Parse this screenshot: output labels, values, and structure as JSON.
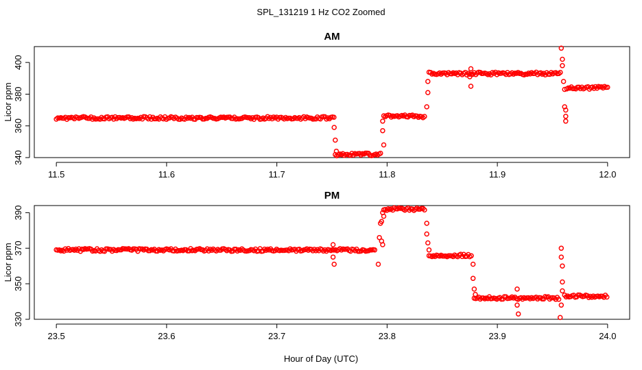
{
  "page_title": "SPL_131219  1 Hz CO2 Zoomed",
  "x_axis_label": "Hour of Day (UTC)",
  "colors": {
    "points": "#ff0000",
    "axes": "#000000",
    "background": "#ffffff"
  },
  "chart_data": [
    {
      "type": "scatter",
      "title": "AM",
      "xlabel": "",
      "ylabel": "Licor ppm",
      "xlim": [
        11.5,
        12.0
      ],
      "ylim": [
        340,
        410
      ],
      "xticks": [
        "11.5",
        "11.6",
        "11.7",
        "11.8",
        "11.9",
        "12.0"
      ],
      "yticks": [
        "340",
        "360",
        "380",
        "400"
      ],
      "grid": false,
      "series": [
        {
          "marker": "open-circle",
          "segments": [
            {
              "x_start": 11.5,
              "x_end": 11.752,
              "y": 365
            },
            {
              "x_start": 11.753,
              "x_end": 11.795,
              "y": 342
            },
            {
              "x_start": 11.797,
              "x_end": 11.835,
              "y": 366
            },
            {
              "x_start": 11.838,
              "x_end": 11.958,
              "y": 393
            },
            {
              "x_start": 11.963,
              "x_end": 12.0,
              "y": 384
            }
          ],
          "points": [
            [
              11.752,
              359
            ],
            [
              11.753,
              351
            ],
            [
              11.754,
              344
            ],
            [
              11.796,
              357
            ],
            [
              11.796,
              363
            ],
            [
              11.797,
              348
            ],
            [
              11.836,
              372
            ],
            [
              11.837,
              381
            ],
            [
              11.837,
              388
            ],
            [
              11.876,
              396
            ],
            [
              11.876,
              385
            ],
            [
              11.875,
              391
            ],
            [
              11.958,
              409
            ],
            [
              11.959,
              402
            ],
            [
              11.959,
              398
            ],
            [
              11.96,
              388
            ],
            [
              11.961,
              383
            ],
            [
              11.961,
              372
            ],
            [
              11.962,
              370
            ],
            [
              11.962,
              366
            ],
            [
              11.962,
              363
            ]
          ]
        }
      ]
    },
    {
      "type": "scatter",
      "title": "PM",
      "xlabel": "",
      "ylabel": "Licor ppm",
      "xlim": [
        23.5,
        24.0
      ],
      "ylim": [
        330,
        394
      ],
      "xticks": [
        "23.5",
        "23.6",
        "23.7",
        "23.8",
        "23.9",
        "24.0"
      ],
      "yticks": [
        "330",
        "350",
        "370",
        "390"
      ],
      "grid": false,
      "series": [
        {
          "marker": "open-circle",
          "segments": [
            {
              "x_start": 23.5,
              "x_end": 23.79,
              "y": 369
            },
            {
              "x_start": 23.797,
              "x_end": 23.835,
              "y": 392
            },
            {
              "x_start": 23.838,
              "x_end": 23.877,
              "y": 366
            },
            {
              "x_start": 23.879,
              "x_end": 23.957,
              "y": 342
            },
            {
              "x_start": 23.961,
              "x_end": 24.0,
              "y": 343
            }
          ],
          "points": [
            [
              23.751,
              372
            ],
            [
              23.751,
              365
            ],
            [
              23.752,
              361
            ],
            [
              23.792,
              361
            ],
            [
              23.793,
              376
            ],
            [
              23.794,
              384
            ],
            [
              23.795,
              385
            ],
            [
              23.795,
              374
            ],
            [
              23.796,
              372
            ],
            [
              23.796,
              390
            ],
            [
              23.797,
              388
            ],
            [
              23.836,
              384
            ],
            [
              23.836,
              378
            ],
            [
              23.837,
              373
            ],
            [
              23.838,
              369
            ],
            [
              23.878,
              361
            ],
            [
              23.878,
              353
            ],
            [
              23.879,
              347
            ],
            [
              23.88,
              344
            ],
            [
              23.918,
              347
            ],
            [
              23.918,
              338
            ],
            [
              23.919,
              333
            ],
            [
              23.958,
              370
            ],
            [
              23.958,
              365
            ],
            [
              23.959,
              360
            ],
            [
              23.959,
              351
            ],
            [
              23.959,
              346
            ],
            [
              23.958,
              338
            ],
            [
              23.957,
              331
            ]
          ]
        }
      ]
    }
  ]
}
